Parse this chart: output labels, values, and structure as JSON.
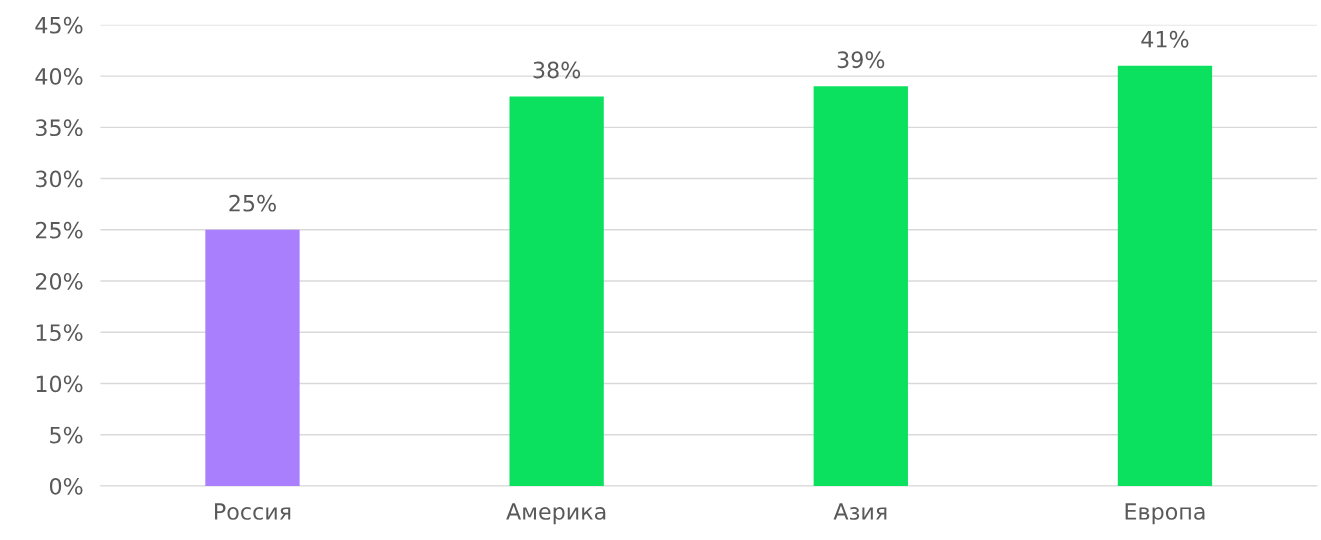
{
  "chart_data": {
    "type": "bar",
    "categories": [
      "Россия",
      "Америка",
      "Азия",
      "Европа"
    ],
    "values": [
      25,
      38,
      39,
      41
    ],
    "colors": [
      "#a97ffd",
      "#0be15e",
      "#0be15e",
      "#0be15e"
    ],
    "value_labels": [
      "25%",
      "38%",
      "39%",
      "41%"
    ],
    "ylim": [
      0,
      45
    ],
    "yticks": [
      {
        "value": 0,
        "label": "0%"
      },
      {
        "value": 5,
        "label": "5%"
      },
      {
        "value": 10,
        "label": "10%"
      },
      {
        "value": 15,
        "label": "15%"
      },
      {
        "value": 20,
        "label": "20%"
      },
      {
        "value": 25,
        "label": "25%"
      },
      {
        "value": 30,
        "label": "30%"
      },
      {
        "value": 35,
        "label": "35%"
      },
      {
        "value": 40,
        "label": "40%"
      },
      {
        "value": 45,
        "label": "45%"
      }
    ],
    "grid": "y"
  }
}
